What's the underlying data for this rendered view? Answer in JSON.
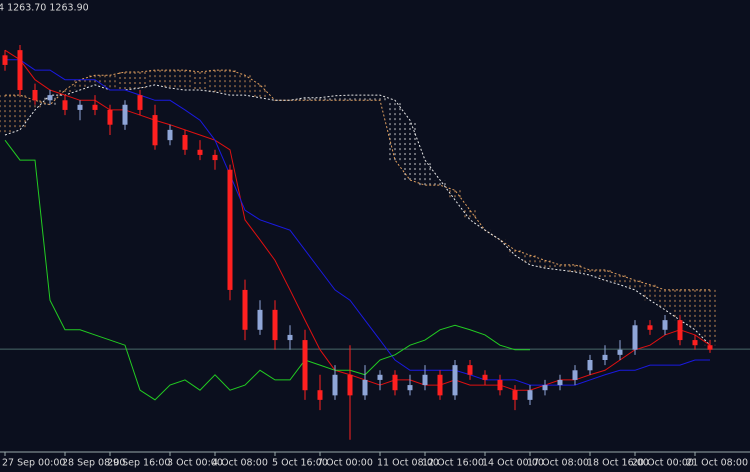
{
  "chart_data": {
    "type": "candlestick",
    "title": "4 1263.70 1263.90",
    "categories": [
      "27 Sep 00:00",
      null,
      null,
      null,
      "28 Sep 08:00",
      null,
      null,
      "29 Sep 16:00",
      null,
      null,
      null,
      "3 Oct 00:00",
      null,
      null,
      "4 Oct 08:00",
      null,
      null,
      null,
      "5 Oct 16:00",
      null,
      null,
      "7 Oct 00:00",
      null,
      null,
      null,
      "11 Oct 08:00",
      null,
      null,
      "12 Oct 16:00",
      null,
      null,
      null,
      "14 Oct 00:00",
      null,
      null,
      "17 Oct 08:00",
      null,
      null,
      null,
      "18 Oct 16:00",
      null,
      null,
      "20 Oct 00:00",
      null,
      null,
      null,
      "21 Oct 08:00",
      null
    ],
    "open": [
      1309.4,
      1310.2,
      1304.0,
      1302.4,
      1302.4,
      1300.9,
      1301.7,
      1300.9,
      1298.6,
      1303.2,
      1300.1,
      1296.2,
      1297.0,
      1294.7,
      1293.9,
      1291.6,
      1272.9,
      1266.7,
      1269.8,
      1265.1,
      1265.1,
      1257.3,
      1256.5,
      1259.7,
      1256.5,
      1258.9,
      1259.7,
      1257.3,
      1258.1,
      1259.7,
      1256.5,
      1261.2,
      1259.7,
      1258.9,
      1257.3,
      1255.8,
      1257.3,
      1258.1,
      1258.9,
      1260.4,
      1262.0,
      1262.8,
      1263.6,
      1267.4,
      1266.7,
      1268.2,
      1265.1,
      1264.3
    ],
    "high": [
      1310.2,
      1311.0,
      1305.0,
      1304.0,
      1303.2,
      1302.4,
      1303.2,
      1301.7,
      1302.4,
      1304.0,
      1301.7,
      1298.6,
      1297.8,
      1296.2,
      1294.7,
      1292.4,
      1274.5,
      1271.3,
      1271.3,
      1267.4,
      1266.7,
      1259.7,
      1261.2,
      1264.3,
      1261.2,
      1260.4,
      1260.4,
      1259.7,
      1261.2,
      1260.4,
      1262.0,
      1262.0,
      1260.4,
      1259.7,
      1258.1,
      1258.1,
      1258.9,
      1259.7,
      1261.2,
      1262.8,
      1264.3,
      1265.1,
      1268.2,
      1268.2,
      1269.0,
      1269.0,
      1265.9,
      1265.1
    ],
    "low": [
      1307.0,
      1303.2,
      1301.7,
      1301.7,
      1300.1,
      1299.3,
      1300.1,
      1297.0,
      1297.8,
      1300.1,
      1294.7,
      1295.4,
      1293.9,
      1293.1,
      1291.6,
      1271.3,
      1265.1,
      1265.9,
      1263.6,
      1263.6,
      1255.8,
      1254.2,
      1255.8,
      1249.6,
      1255.8,
      1257.3,
      1256.5,
      1256.5,
      1257.3,
      1255.8,
      1255.8,
      1258.9,
      1258.1,
      1256.5,
      1254.2,
      1255.0,
      1256.5,
      1257.3,
      1258.1,
      1259.7,
      1261.2,
      1262.0,
      1262.8,
      1265.9,
      1265.9,
      1264.3,
      1263.6,
      1263.1
    ],
    "close": [
      1307.9,
      1304.0,
      1302.4,
      1303.2,
      1300.9,
      1301.7,
      1300.9,
      1298.6,
      1301.7,
      1300.9,
      1295.4,
      1297.8,
      1294.7,
      1293.9,
      1293.1,
      1272.9,
      1266.7,
      1269.8,
      1265.1,
      1265.9,
      1257.3,
      1255.8,
      1259.7,
      1256.5,
      1258.9,
      1259.7,
      1257.3,
      1258.1,
      1259.7,
      1256.5,
      1261.2,
      1259.7,
      1258.9,
      1257.3,
      1255.8,
      1257.3,
      1258.1,
      1258.9,
      1260.4,
      1262.0,
      1262.8,
      1263.6,
      1267.4,
      1266.7,
      1268.2,
      1265.1,
      1264.3,
      1263.6
    ],
    "up_color": "#8fa6d8",
    "down_color": "#ff2020",
    "ylim": [
      1248,
      1318
    ],
    "bid_line": 1263.7,
    "bid_line_color": "#4a6a6a",
    "lines": [
      {
        "color": "#e01010",
        "values": [
          1310.2,
          1308.7,
          1305.6,
          1304.0,
          1303.2,
          1302.4,
          1302.4,
          1300.9,
          1300.9,
          1300.1,
          1299.3,
          1298.6,
          1297.8,
          1297.0,
          1296.2,
          1294.7,
          1283.8,
          1280.7,
          1277.5,
          1272.9,
          1268.2,
          1263.6,
          1260.4,
          1259.7,
          1258.9,
          1258.1,
          1258.9,
          1258.9,
          1258.1,
          1258.1,
          1258.9,
          1258.1,
          1258.1,
          1258.1,
          1257.3,
          1257.3,
          1258.1,
          1258.9,
          1258.9,
          1259.7,
          1260.4,
          1262.0,
          1263.6,
          1264.3,
          1265.9,
          1266.7,
          1265.9,
          1264.3
        ]
      },
      {
        "color": "#1a1ae0",
        "values": [
          1308.7,
          1308.7,
          1307.1,
          1307.1,
          1305.6,
          1305.6,
          1305.6,
          1304.0,
          1304.0,
          1303.2,
          1302.4,
          1302.4,
          1300.9,
          1299.3,
          1296.2,
          1290.8,
          1285.3,
          1283.8,
          1283.0,
          1282.2,
          1279.1,
          1276.0,
          1272.9,
          1271.3,
          1268.2,
          1265.1,
          1262.0,
          1260.4,
          1260.4,
          1260.4,
          1260.4,
          1259.7,
          1258.9,
          1258.9,
          1258.9,
          1258.1,
          1258.1,
          1258.1,
          1258.1,
          1258.9,
          1259.7,
          1260.4,
          1260.4,
          1261.2,
          1261.2,
          1261.2,
          1262.0,
          1262.0
        ]
      },
      {
        "color": "#22cc22",
        "values": [
          1296.2,
          1293.1,
          1293.1,
          1271.3,
          1266.7,
          1266.7,
          1265.9,
          1265.1,
          1264.3,
          1257.3,
          1255.8,
          1258.1,
          1258.9,
          1257.3,
          1259.7,
          1257.3,
          1258.1,
          1260.4,
          1258.9,
          1258.9,
          1262.0,
          1261.2,
          1260.4,
          1260.4,
          1259.7,
          1262.0,
          1262.8,
          1264.3,
          1265.1,
          1266.7,
          1267.4,
          1266.7,
          1265.9,
          1264.3,
          1263.6,
          1263.6,
          null,
          null,
          null,
          null,
          null,
          null,
          null,
          null,
          null,
          null,
          null,
          null
        ]
      }
    ],
    "cloud": {
      "a": [
        1303.2,
        1303.2,
        1302.4,
        1301.7,
        1304.0,
        1305.6,
        1306.3,
        1306.3,
        1306.8,
        1306.8,
        1307.1,
        1307.1,
        1307.1,
        1306.8,
        1307.1,
        1307.1,
        1306.3,
        1304.8,
        1302.4,
        1302.4,
        1302.4,
        1302.4,
        1302.4,
        1302.4,
        1302.4,
        1302.4,
        1293.1,
        1290.0,
        1289.2,
        1289.2,
        1288.4,
        1285.3,
        1282.2,
        1280.7,
        1279.1,
        1278.3,
        1277.5,
        1276.8,
        1276.8,
        1276.0,
        1276.0,
        1275.2,
        1274.4,
        1273.7,
        1272.9,
        1272.9,
        1272.9,
        1272.9
      ],
      "b": [
        1297.0,
        1297.8,
        1300.9,
        1303.2,
        1303.2,
        1304.0,
        1304.8,
        1304.0,
        1304.0,
        1304.3,
        1304.8,
        1304.3,
        1304.0,
        1304.0,
        1303.7,
        1303.2,
        1303.2,
        1302.8,
        1302.4,
        1302.4,
        1302.8,
        1302.8,
        1303.1,
        1303.2,
        1303.2,
        1303.2,
        1302.4,
        1299.3,
        1293.1,
        1290.0,
        1286.9,
        1283.8,
        1282.2,
        1280.7,
        1278.3,
        1276.8,
        1276.3,
        1276.0,
        1275.7,
        1275.2,
        1274.4,
        1273.7,
        1272.9,
        1271.3,
        1269.8,
        1268.2,
        1266.7,
        1264.3
      ],
      "a_color": "#e0a060",
      "b_color": "#e8e8e8"
    }
  }
}
